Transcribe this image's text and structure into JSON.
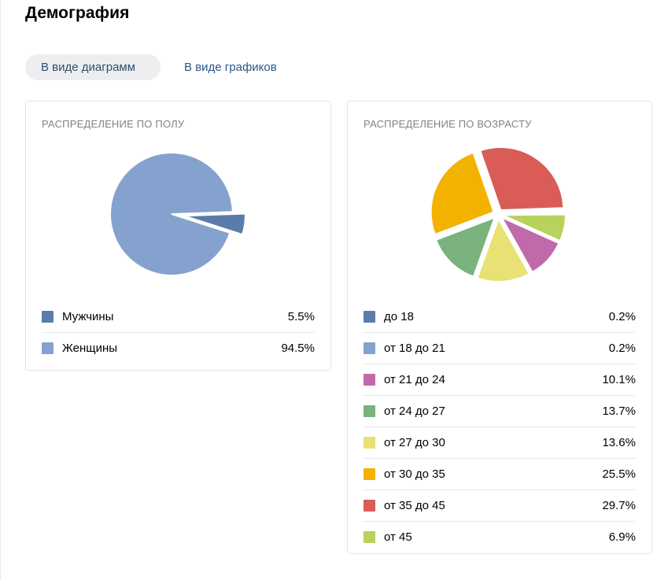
{
  "page": {
    "title": "Демография"
  },
  "tabs": [
    {
      "label": "В виде диаграмм",
      "active": true
    },
    {
      "label": "В виде графиков",
      "active": false
    }
  ],
  "gender": {
    "card_title": "РАСПРЕДЕЛЕНИЕ ПО ПОЛУ",
    "legend": [
      {
        "label": "Мужчины",
        "value": "5.5%",
        "color": "#5b7cab"
      },
      {
        "label": "Женщины",
        "value": "94.5%",
        "color": "#84a2cd"
      }
    ]
  },
  "age": {
    "card_title": "РАСПРЕДЕЛЕНИЕ ПО ВОЗРАСТУ",
    "legend": [
      {
        "label": "до 18",
        "value": "0.2%",
        "color": "#5b7cab"
      },
      {
        "label": "от 18 до 21",
        "value": "0.2%",
        "color": "#84a2cd"
      },
      {
        "label": "от 21 до 24",
        "value": "10.1%",
        "color": "#c06aab"
      },
      {
        "label": "от 24 до 27",
        "value": "13.7%",
        "color": "#7ab37e"
      },
      {
        "label": "от 27 до 30",
        "value": "13.6%",
        "color": "#e8e173"
      },
      {
        "label": "от 30 до 35",
        "value": "25.5%",
        "color": "#f3b200"
      },
      {
        "label": "от 35 до 45",
        "value": "29.7%",
        "color": "#d95d56"
      },
      {
        "label": "от 45",
        "value": "6.9%",
        "color": "#b8d25b"
      }
    ]
  },
  "chart_data": [
    {
      "type": "pie",
      "title": "РАСПРЕДЕЛЕНИЕ ПО ПОЛУ",
      "categories": [
        "Мужчины",
        "Женщины"
      ],
      "values": [
        5.5,
        94.5
      ],
      "colors": [
        "#5b7cab",
        "#84a2cd"
      ],
      "exploded": [
        true,
        false
      ]
    },
    {
      "type": "pie",
      "title": "РАСПРЕДЕЛЕНИЕ ПО ВОЗРАСТУ",
      "categories": [
        "до 18",
        "от 18 до 21",
        "от 21 до 24",
        "от 24 до 27",
        "от 27 до 30",
        "от 30 до 35",
        "от 35 до 45",
        "от 45"
      ],
      "values": [
        0.2,
        0.2,
        10.1,
        13.7,
        13.6,
        25.5,
        29.7,
        6.9
      ],
      "colors": [
        "#5b7cab",
        "#84a2cd",
        "#c06aab",
        "#7ab37e",
        "#e8e173",
        "#f3b200",
        "#d95d56",
        "#b8d25b"
      ],
      "exploded": [
        true,
        true,
        true,
        true,
        true,
        true,
        true,
        true
      ]
    }
  ]
}
